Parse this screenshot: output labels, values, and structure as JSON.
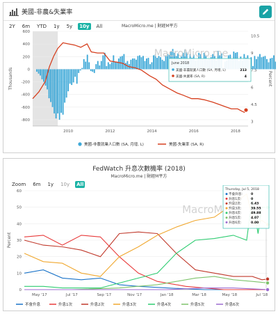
{
  "panel1": {
    "header_title": "美國-非農&失業率",
    "icon": "bar-chart-icon",
    "edit_icon": "pencil-icon",
    "source": "MacroMicro.me | 財經M平方",
    "watermark": "MacroMicro.me",
    "zoom_label": "Zoom",
    "zoom_options": [
      "2Y",
      "6m",
      "YTD",
      "1y",
      "5y",
      "10y",
      "All"
    ],
    "zoom_selected": "10y",
    "tooltip": {
      "date": "June 2018",
      "row1_label": "美國-非農就業人口數 (SA, 月增, L)",
      "row1_value": "213",
      "row2_label": "美國-失業率 (SA, R)",
      "row2_value": "4"
    },
    "legend": [
      "美國-非農就業人口數 (SA, 月增, L)",
      "美國-失業率 (SA, R)"
    ]
  },
  "panel2": {
    "title": "FedWatch 升息次數機率 (2018)",
    "source": "MacroMicro.me | 財經M平方",
    "watermark": "MacroMicro",
    "zoom_label": "Zoom",
    "zoom_options": [
      "6m",
      "1y",
      "10y",
      "All"
    ],
    "zoom_selected": "All",
    "zoom_muted": [
      "10y"
    ],
    "tooltip": {
      "date": "Thursday, Jul 5, 2018",
      "rows": [
        {
          "label": "不會升息",
          "value": "0"
        },
        {
          "label": "升息1次",
          "value": "0"
        },
        {
          "label": "升息2次",
          "value": "6.43"
        },
        {
          "label": "升息3次",
          "value": "39.55"
        },
        {
          "label": "升息4次",
          "value": "49.88"
        },
        {
          "label": "升息5次",
          "value": "4.07"
        },
        {
          "label": "升息6次",
          "value": "0.00"
        }
      ]
    },
    "legend": [
      "不會升息",
      "升息1次",
      "升息2次",
      "升息3次",
      "升息4次",
      "升息5次",
      "升息6次"
    ]
  },
  "colors": {
    "teal": "#1ab3a6",
    "bar_blue": "#3fa9d8",
    "line_red": "#d6401f",
    "series": [
      "#1a73c8",
      "#e83a3a",
      "#c0392b",
      "#f0a830",
      "#2ecc71",
      "#7dc36b",
      "#9c6bd0"
    ]
  },
  "chart_data": [
    {
      "type": "bar",
      "title": "美國-非農&失業率",
      "x_range": [
        2008.3,
        2018.6
      ],
      "xticks": [
        2010,
        2012,
        2014,
        2016,
        2018
      ],
      "ylabel_left": "Thousands",
      "ylabel_right": "Percent",
      "ylim_left": [
        -900,
        600
      ],
      "yticks_left": [
        600,
        400,
        200,
        0,
        -200,
        -400,
        -600,
        -800
      ],
      "ylim_right": [
        2.6,
        10.9
      ],
      "yticks_right": [
        10.5,
        9,
        7.5,
        6,
        4.5,
        3
      ],
      "shaded_recession": [
        2008.3,
        2009.5
      ],
      "series": [
        {
          "name": "美國-非農就業人口數 (SA, 月增, L)",
          "kind": "bar",
          "start": 2008.5,
          "step": 0.0833,
          "values": [
            -40,
            -70,
            -100,
            -160,
            -200,
            -260,
            -320,
            -460,
            -520,
            -600,
            -700,
            -780,
            -700,
            -800,
            -690,
            -720,
            -530,
            -450,
            -350,
            -230,
            -250,
            -210,
            -120,
            -230,
            -60,
            -20,
            20,
            160,
            120,
            230,
            110,
            -30,
            -40,
            -60,
            80,
            130,
            60,
            130,
            220,
            260,
            50,
            110,
            80,
            110,
            220,
            110,
            120,
            170,
            200,
            210,
            240,
            100,
            130,
            80,
            150,
            170,
            170,
            150,
            210,
            220,
            190,
            210,
            130,
            170,
            180,
            80,
            110,
            220,
            230,
            180,
            210,
            190,
            150,
            130,
            220,
            240,
            230,
            280,
            320,
            260,
            210,
            250,
            180,
            200,
            260,
            310,
            270,
            140,
            240,
            180,
            230,
            140,
            150,
            260,
            240,
            170,
            260,
            220,
            150,
            160,
            190,
            240,
            210,
            140,
            290,
            220,
            250,
            20,
            120,
            140,
            220,
            230,
            170,
            280,
            260,
            270,
            130,
            200,
            140,
            240,
            180,
            220,
            170,
            190,
            50,
            210,
            160,
            200,
            240,
            190,
            200,
            210,
            160,
            110,
            170,
            180,
            220,
            120,
            250,
            200,
            160,
            240,
            300,
            210,
            220,
            240,
            210,
            150,
            240,
            180,
            270,
            230,
            210
          ]
        },
        {
          "name": "美國-失業率 (SA, R)",
          "kind": "line",
          "points": [
            [
              2008.3,
              5.0
            ],
            [
              2008.6,
              5.6
            ],
            [
              2008.9,
              6.5
            ],
            [
              2009.1,
              7.8
            ],
            [
              2009.3,
              8.7
            ],
            [
              2009.5,
              9.4
            ],
            [
              2009.75,
              9.9
            ],
            [
              2010.0,
              9.8
            ],
            [
              2010.3,
              9.7
            ],
            [
              2010.6,
              9.5
            ],
            [
              2010.9,
              9.8
            ],
            [
              2011.1,
              9.1
            ],
            [
              2011.4,
              9.0
            ],
            [
              2011.7,
              9.0
            ],
            [
              2012.0,
              8.3
            ],
            [
              2012.3,
              8.2
            ],
            [
              2012.6,
              8.1
            ],
            [
              2012.9,
              7.8
            ],
            [
              2013.2,
              7.7
            ],
            [
              2013.5,
              7.5
            ],
            [
              2013.9,
              7.0
            ],
            [
              2014.2,
              6.7
            ],
            [
              2014.5,
              6.2
            ],
            [
              2014.9,
              5.8
            ],
            [
              2015.2,
              5.5
            ],
            [
              2015.5,
              5.3
            ],
            [
              2015.9,
              5.0
            ],
            [
              2016.2,
              5.0
            ],
            [
              2016.5,
              4.9
            ],
            [
              2016.9,
              4.7
            ],
            [
              2017.2,
              4.5
            ],
            [
              2017.5,
              4.3
            ],
            [
              2017.8,
              4.1
            ],
            [
              2018.1,
              4.1
            ],
            [
              2018.3,
              3.9
            ],
            [
              2018.42,
              3.8
            ],
            [
              2018.5,
              4.0
            ]
          ]
        }
      ]
    },
    {
      "type": "line",
      "title": "FedWatch 升息次數機率 (2018)",
      "x_range": [
        2017.25,
        2018.53
      ],
      "xtick_labels": [
        [
          "May '17",
          2017.33
        ],
        [
          "Jul '17",
          2017.5
        ],
        [
          "Sep '17",
          2017.67
        ],
        [
          "Nov '17",
          2017.83
        ],
        [
          "Jan '18",
          2018.0
        ],
        [
          "Mar '18",
          2018.17
        ],
        [
          "May '18",
          2018.33
        ],
        [
          "Jul '18",
          2018.5
        ]
      ],
      "ylabel": "Percent",
      "ylim": [
        0,
        60
      ],
      "yticks": [
        0,
        10,
        20,
        30,
        40,
        50,
        60
      ],
      "series": [
        {
          "name": "不會升息",
          "points": [
            [
              2017.25,
              10
            ],
            [
              2017.35,
              12
            ],
            [
              2017.45,
              7
            ],
            [
              2017.55,
              6
            ],
            [
              2017.65,
              7
            ],
            [
              2017.75,
              3
            ],
            [
              2017.85,
              2
            ],
            [
              2018.0,
              1
            ],
            [
              2018.2,
              0
            ],
            [
              2018.53,
              0
            ]
          ]
        },
        {
          "name": "升息1次",
          "points": [
            [
              2017.25,
              32
            ],
            [
              2017.35,
              33
            ],
            [
              2017.45,
              27
            ],
            [
              2017.55,
              33
            ],
            [
              2017.65,
              32
            ],
            [
              2017.75,
              20
            ],
            [
              2017.85,
              10
            ],
            [
              2017.95,
              5
            ],
            [
              2018.1,
              2
            ],
            [
              2018.3,
              0
            ],
            [
              2018.45,
              0
            ],
            [
              2018.53,
              0
            ]
          ]
        },
        {
          "name": "升息2次",
          "points": [
            [
              2017.25,
              30
            ],
            [
              2017.35,
              27
            ],
            [
              2017.45,
              26
            ],
            [
              2017.55,
              24
            ],
            [
              2017.65,
              20
            ],
            [
              2017.75,
              34
            ],
            [
              2017.85,
              35
            ],
            [
              2017.95,
              34
            ],
            [
              2018.05,
              22
            ],
            [
              2018.15,
              12
            ],
            [
              2018.25,
              10
            ],
            [
              2018.35,
              8
            ],
            [
              2018.45,
              8
            ],
            [
              2018.5,
              6
            ],
            [
              2018.53,
              6.43
            ]
          ]
        },
        {
          "name": "升息3次",
          "points": [
            [
              2017.25,
              22
            ],
            [
              2017.35,
              17
            ],
            [
              2017.45,
              16
            ],
            [
              2017.55,
              10
            ],
            [
              2017.65,
              8
            ],
            [
              2017.75,
              20
            ],
            [
              2017.85,
              26
            ],
            [
              2017.95,
              33
            ],
            [
              2018.05,
              38
            ],
            [
              2018.15,
              42
            ],
            [
              2018.25,
              44
            ],
            [
              2018.35,
              52
            ],
            [
              2018.42,
              58
            ],
            [
              2018.46,
              40
            ],
            [
              2018.5,
              42
            ],
            [
              2018.53,
              39.55
            ]
          ]
        },
        {
          "name": "升息4次",
          "points": [
            [
              2017.25,
              2
            ],
            [
              2017.35,
              2
            ],
            [
              2017.45,
              1
            ],
            [
              2017.55,
              1
            ],
            [
              2017.65,
              1
            ],
            [
              2017.75,
              4
            ],
            [
              2017.85,
              7
            ],
            [
              2017.95,
              10
            ],
            [
              2018.05,
              22
            ],
            [
              2018.15,
              30
            ],
            [
              2018.25,
              31
            ],
            [
              2018.35,
              33
            ],
            [
              2018.42,
              30
            ],
            [
              2018.45,
              56
            ],
            [
              2018.48,
              34
            ],
            [
              2018.5,
              50
            ],
            [
              2018.53,
              49.88
            ]
          ]
        },
        {
          "name": "升息5次",
          "points": [
            [
              2017.25,
              0
            ],
            [
              2017.5,
              0
            ],
            [
              2017.75,
              1
            ],
            [
              2017.95,
              3
            ],
            [
              2018.05,
              5
            ],
            [
              2018.15,
              7
            ],
            [
              2018.25,
              8
            ],
            [
              2018.35,
              6
            ],
            [
              2018.45,
              5
            ],
            [
              2018.53,
              4.07
            ]
          ]
        },
        {
          "name": "升息6次",
          "points": [
            [
              2017.25,
              0
            ],
            [
              2018.0,
              0
            ],
            [
              2018.2,
              1
            ],
            [
              2018.35,
              1
            ],
            [
              2018.53,
              0
            ]
          ]
        }
      ]
    }
  ]
}
